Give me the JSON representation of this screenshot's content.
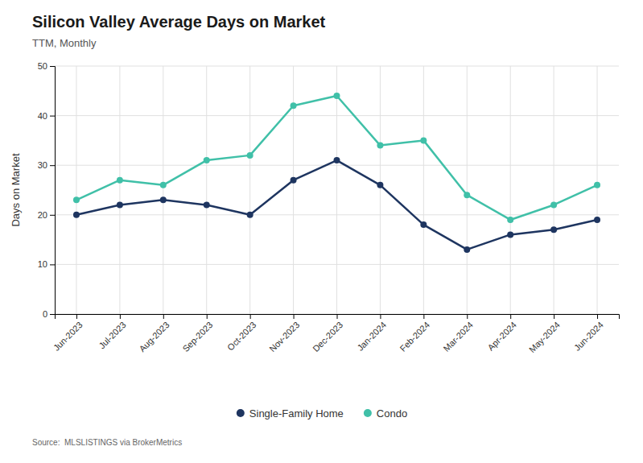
{
  "chart_data": {
    "type": "line",
    "title": "Silicon Valley Average Days on Market",
    "subtitle": "TTM, Monthly",
    "y_label": "Days on Market",
    "source": "Source:  MLSLISTINGS via BrokerMetrics",
    "categories": [
      "Jun-2023",
      "Jul-2023",
      "Aug-2023",
      "Sep-2023",
      "Oct-2023",
      "Nov-2023",
      "Dec-2023",
      "Jan-2024",
      "Feb-2024",
      "Mar-2024",
      "Apr-2024",
      "May-2024",
      "Jun-2024"
    ],
    "series": [
      {
        "name": "Single-Family Home",
        "color": "#1e3560",
        "marker": "circle",
        "values": [
          20,
          22,
          23,
          22,
          20,
          27,
          31,
          26,
          18,
          13,
          16,
          17,
          19
        ]
      },
      {
        "name": "Condo",
        "color": "#40c0a8",
        "marker": "circle",
        "values": [
          23,
          27,
          26,
          31,
          32,
          42,
          44,
          34,
          35,
          24,
          19,
          22,
          26
        ]
      }
    ],
    "ylim": [
      0,
      50
    ],
    "yticks": [
      0,
      10,
      20,
      30,
      40,
      50
    ],
    "grid": true,
    "legend": "bottom"
  }
}
